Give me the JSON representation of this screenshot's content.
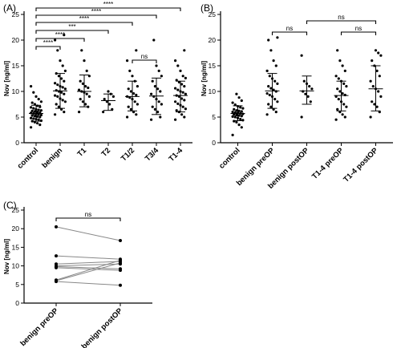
{
  "chart_data": [
    {
      "panel": "(A)",
      "type": "scatter",
      "ylabel": "Nov [ng/ml]",
      "ylim": [
        0,
        25
      ],
      "yticks": [
        0,
        5,
        10,
        15,
        20,
        25
      ],
      "categories": [
        "control",
        "benign",
        "T1",
        "T2",
        "T1/2",
        "T3/4",
        "T1-4"
      ],
      "groups": [
        {
          "category": "control",
          "mean": 5.7,
          "sd_low": 4.2,
          "sd_high": 7.3,
          "points": [
            3.0,
            3.5,
            3.8,
            4.0,
            4.2,
            4.3,
            4.5,
            4.6,
            4.7,
            4.8,
            5.0,
            5.1,
            5.2,
            5.3,
            5.4,
            5.5,
            5.6,
            5.7,
            5.8,
            5.9,
            6.0,
            6.1,
            6.2,
            6.3,
            6.4,
            6.5,
            6.7,
            6.9,
            7.0,
            7.2,
            7.5,
            7.8,
            8.0,
            8.5,
            9.0,
            9.8,
            11.0
          ]
        },
        {
          "category": "benign",
          "mean": 10.1,
          "sd_low": 6.7,
          "sd_high": 13.5,
          "points": [
            5.5,
            6.0,
            6.5,
            7.0,
            7.5,
            8.0,
            8.3,
            8.6,
            9.0,
            9.2,
            9.5,
            9.8,
            10.0,
            10.2,
            10.5,
            10.8,
            11.0,
            11.3,
            11.6,
            12.0,
            12.5,
            13.0,
            13.5,
            14.0,
            15.0,
            16.0,
            18.0,
            20.0,
            21.0
          ]
        },
        {
          "category": "T1",
          "mean": 10.0,
          "sd_low": 7.0,
          "sd_high": 13.2,
          "points": [
            6.0,
            7.0,
            7.5,
            8.0,
            8.5,
            9.0,
            9.5,
            9.8,
            10.0,
            10.3,
            10.7,
            11.0,
            11.5,
            12.0,
            13.0,
            14.0,
            16.0,
            18.0
          ]
        },
        {
          "category": "T2",
          "mean": 8.2,
          "sd_low": 6.3,
          "sd_high": 9.5,
          "points": [
            6.0,
            6.5,
            7.5,
            8.0,
            8.5,
            9.0,
            9.5,
            10.0
          ]
        },
        {
          "category": "T1/2",
          "mean": 9.0,
          "sd_low": 6.2,
          "sd_high": 12.0,
          "points": [
            5.0,
            5.5,
            6.0,
            6.5,
            7.0,
            7.5,
            8.0,
            8.5,
            8.8,
            9.0,
            9.3,
            9.6,
            10.0,
            10.5,
            11.0,
            12.0,
            13.0,
            14.0,
            16.0,
            18.0
          ]
        },
        {
          "category": "T3/4",
          "mean": 9.1,
          "sd_low": 5.5,
          "sd_high": 12.6,
          "points": [
            4.5,
            5.0,
            6.0,
            6.5,
            7.0,
            7.5,
            8.0,
            8.5,
            9.0,
            9.5,
            10.0,
            10.5,
            11.0,
            12.0,
            13.0,
            14.0,
            15.0,
            20.0
          ]
        },
        {
          "category": "T1-4",
          "mean": 9.2,
          "sd_low": 6.0,
          "sd_high": 12.0,
          "points": [
            4.5,
            5.0,
            5.5,
            6.0,
            6.3,
            6.6,
            7.0,
            7.3,
            7.6,
            8.0,
            8.3,
            8.6,
            9.0,
            9.2,
            9.5,
            9.8,
            10.0,
            10.3,
            10.6,
            11.0,
            11.4,
            11.8,
            12.2,
            12.6,
            13.0,
            14.0,
            15.0,
            16.0,
            18.0
          ]
        }
      ],
      "comparisons": [
        {
          "from": "control",
          "to": "T1-4",
          "label": "****"
        },
        {
          "from": "control",
          "to": "T3/4",
          "label": "****"
        },
        {
          "from": "control",
          "to": "T1/2",
          "label": "****"
        },
        {
          "from": "control",
          "to": "T2",
          "label": "***"
        },
        {
          "from": "control",
          "to": "T1",
          "label": "****"
        },
        {
          "from": "control",
          "to": "benign",
          "label": "****"
        },
        {
          "from": "T1/2",
          "to": "T3/4",
          "label": "ns"
        }
      ]
    },
    {
      "panel": "(B)",
      "type": "scatter",
      "ylabel": "Nov [ng/ml]",
      "ylim": [
        0,
        25
      ],
      "yticks": [
        0,
        5,
        10,
        15,
        20,
        25
      ],
      "categories": [
        "control",
        "benign preOP",
        "benign postOP",
        "T1-4 preOP",
        "T1-4 postOP"
      ],
      "groups": [
        {
          "category": "control",
          "mean": 5.7,
          "sd_low": 4.3,
          "sd_high": 7.2,
          "points": [
            1.5,
            3.0,
            3.5,
            4.0,
            4.2,
            4.4,
            4.6,
            4.8,
            5.0,
            5.1,
            5.2,
            5.3,
            5.4,
            5.5,
            5.6,
            5.7,
            5.8,
            5.9,
            6.0,
            6.1,
            6.2,
            6.3,
            6.5,
            6.7,
            6.9,
            7.1,
            7.4,
            7.8,
            8.2,
            8.8,
            9.5
          ]
        },
        {
          "category": "benign preOP",
          "mean": 10.1,
          "sd_low": 6.7,
          "sd_high": 13.5,
          "points": [
            5.5,
            6.0,
            6.5,
            7.0,
            7.5,
            8.0,
            8.5,
            9.0,
            9.3,
            9.6,
            10.0,
            10.3,
            10.6,
            11.0,
            11.5,
            12.0,
            12.5,
            13.0,
            14.0,
            15.0,
            16.0,
            18.0,
            20.0,
            20.5
          ]
        },
        {
          "category": "benign postOP",
          "mean": 10.1,
          "sd_low": 7.5,
          "sd_high": 13.0,
          "points": [
            5.0,
            8.0,
            9.0,
            9.5,
            10.0,
            10.5,
            11.0,
            11.5,
            12.0,
            17.0
          ]
        },
        {
          "category": "T1-4 preOP",
          "mean": 9.2,
          "sd_low": 6.2,
          "sd_high": 12.0,
          "points": [
            4.5,
            5.0,
            5.5,
            6.0,
            6.5,
            7.0,
            7.5,
            8.0,
            8.5,
            9.0,
            9.3,
            9.6,
            10.0,
            10.5,
            11.0,
            11.5,
            12.0,
            12.5,
            13.0,
            14.0,
            15.0,
            16.0,
            18.0
          ]
        },
        {
          "category": "T1-4 postOP",
          "mean": 10.5,
          "sd_low": 6.2,
          "sd_high": 15.0,
          "points": [
            5.0,
            6.0,
            7.0,
            7.5,
            8.0,
            9.0,
            10.0,
            10.5,
            11.0,
            12.0,
            13.0,
            14.0,
            15.0,
            16.0,
            17.0,
            17.5,
            18.0
          ]
        }
      ],
      "comparisons": [
        {
          "from": "control",
          "to": "benign postOP",
          "label": "ns",
          "bracket": "benign preOP-benign postOP"
        },
        {
          "from": "benign postOP",
          "to": "T1-4 postOP",
          "label": "ns"
        },
        {
          "from": "T1-4 preOP",
          "to": "T1-4 postOP",
          "label": "ns"
        }
      ]
    },
    {
      "panel": "(C)",
      "type": "line",
      "ylabel": "Nov [ng/ml]",
      "ylim": [
        0,
        25
      ],
      "yticks": [
        0,
        5,
        10,
        15,
        20,
        25
      ],
      "categories": [
        "benign preOP",
        "benign postOP"
      ],
      "pairs": [
        [
          20.5,
          16.8
        ],
        [
          12.7,
          11.8
        ],
        [
          10.5,
          11.2
        ],
        [
          10.0,
          10.5
        ],
        [
          9.8,
          9.2
        ],
        [
          9.5,
          8.8
        ],
        [
          6.2,
          11.5
        ],
        [
          6.0,
          10.8
        ],
        [
          5.8,
          4.8
        ]
      ],
      "comparisons": [
        {
          "from": "benign preOP",
          "to": "benign postOP",
          "label": "ns"
        }
      ]
    }
  ]
}
